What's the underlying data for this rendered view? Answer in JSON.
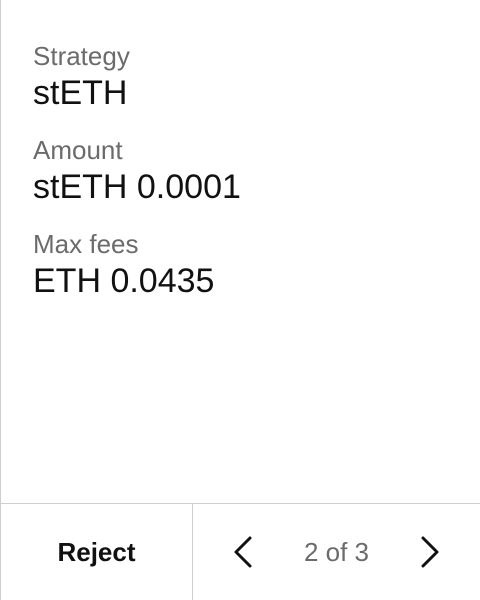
{
  "details": [
    {
      "label": "Strategy",
      "value": "stETH"
    },
    {
      "label": "Amount",
      "value": "stETH 0.0001"
    },
    {
      "label": "Max fees",
      "value": "ETH 0.0435"
    }
  ],
  "footer": {
    "reject_label": "Reject",
    "page_indicator": "2 of 3",
    "prev_icon": "chevron-left-icon",
    "next_icon": "chevron-right-icon"
  },
  "colors": {
    "text": "#111111",
    "label": "#6b6b6b",
    "border": "#cfcfcf",
    "background": "#ffffff"
  }
}
